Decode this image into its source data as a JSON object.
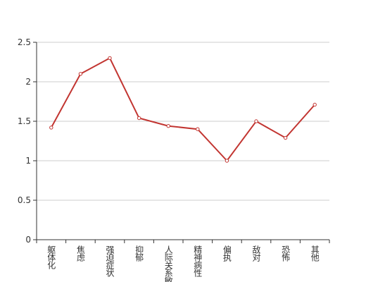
{
  "chart_data": {
    "type": "line",
    "categories": [
      "躯体化",
      "焦虑",
      "强迫症状",
      "抑郁",
      "人际关系敏感",
      "精神病性",
      "偏执",
      "敌对",
      "恐怖",
      "其他"
    ],
    "values": [
      1.42,
      2.1,
      2.3,
      1.54,
      1.44,
      1.4,
      1.0,
      1.5,
      1.29,
      1.71
    ],
    "color": "#c23531",
    "ylim": [
      0,
      2.5
    ],
    "yticks": [
      0,
      0.5,
      1,
      1.5,
      2,
      2.5
    ],
    "grid": true
  }
}
